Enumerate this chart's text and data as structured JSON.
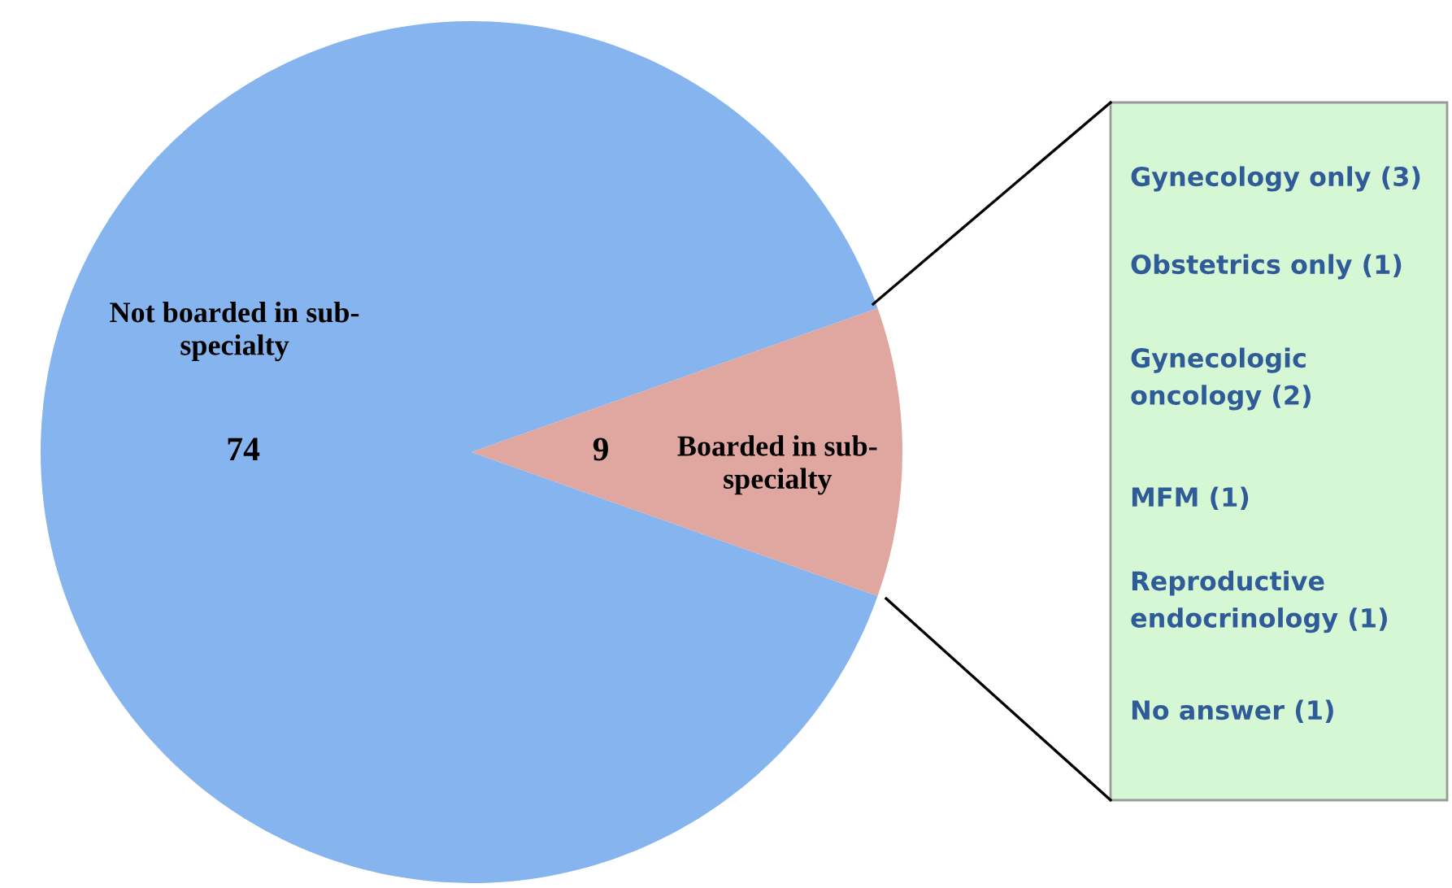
{
  "chart_data": {
    "type": "pie",
    "categories": [
      "Not boarded in sub-\nspecialty",
      "Boarded in sub-\nspecialty"
    ],
    "values": [
      74,
      9
    ],
    "colors": [
      "#86b4ee",
      "#e0a6a0"
    ],
    "data_labels": true,
    "annotations": [
      "Gynecology only (3)",
      "Obstetrics only (1)",
      "Gynecologic\noncology (2)",
      "MFM (1)",
      "Reproductive\nendocrinology (1)",
      "No answer (1)"
    ]
  }
}
